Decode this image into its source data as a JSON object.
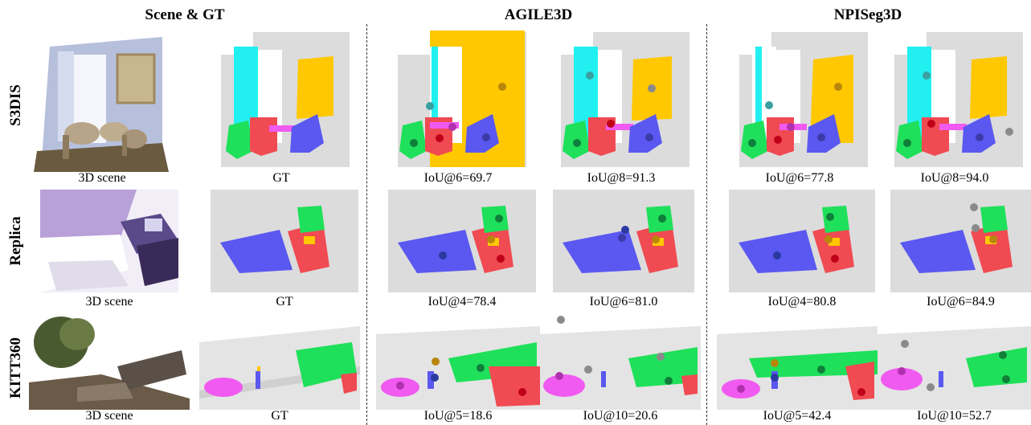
{
  "groups": [
    "Scene & GT",
    "AGILE3D",
    "NPISeg3D"
  ],
  "rows": [
    "S3DIS",
    "Replica",
    "KITT360"
  ],
  "captions": [
    [
      "3D scene",
      "GT",
      "IoU@6=69.7",
      "IoU@8=91.3",
      "IoU@6=77.8",
      "IoU@8=94.0"
    ],
    [
      "3D scene",
      "GT",
      "IoU@4=78.4",
      "IoU@6=81.0",
      "IoU@4=80.8",
      "IoU@6=84.9"
    ],
    [
      "3D scene",
      "GT",
      "IoU@5=18.6",
      "IoU@10=20.6",
      "IoU@5=42.4",
      "IoU@10=52.7"
    ]
  ],
  "colors": {
    "cyan": "#22f0f0",
    "yellow": "#ffc800",
    "green": "#1fe05a",
    "red": "#f04a52",
    "blue": "#5a58f0",
    "magenta": "#f05af0",
    "gray": "#dcdcdc",
    "teal_click": "#3aa0a0",
    "gray_click": "#8a8a8a"
  }
}
